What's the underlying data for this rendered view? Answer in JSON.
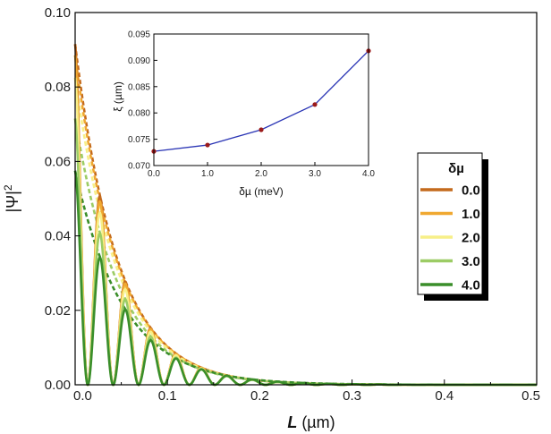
{
  "chart_data": [
    {
      "type": "line",
      "role": "main",
      "xlabel_symbol": "L",
      "xlabel_unit": " (µm)",
      "ylabel": "|Ψ|",
      "ylabel_exponent": "2",
      "xlim": [
        0.0,
        0.5
      ],
      "ylim": [
        0.0,
        0.1
      ],
      "x_ticks": [
        "0.0",
        "0.1",
        "0.2",
        "0.3",
        "0.4",
        "0.5"
      ],
      "y_ticks": [
        "0.00",
        "0.02",
        "0.04",
        "0.06",
        "0.08",
        "0.10"
      ],
      "legend": {
        "title": "δµ",
        "location": "center-right"
      },
      "oscillation_period": 0.0275,
      "series": [
        {
          "name": "0.0",
          "color": "#c46a1c",
          "envelope_peak": 0.0915,
          "decay_length": 0.0915
        },
        {
          "name": "1.0",
          "color": "#f0a830",
          "envelope_peak": 0.0885,
          "decay_length": 0.0925
        },
        {
          "name": "2.0",
          "color": "#f7ef88",
          "envelope_peak": 0.0825,
          "decay_length": 0.0935
        },
        {
          "name": "3.0",
          "color": "#9ccc65",
          "envelope_peak": 0.0715,
          "decay_length": 0.096
        },
        {
          "name": "4.0",
          "color": "#3a8e2a",
          "envelope_peak": 0.0575,
          "decay_length": 0.1045
        }
      ]
    },
    {
      "type": "line",
      "role": "inset",
      "xlabel": "δµ (meV)",
      "ylabel": "ξ (µm)",
      "xlim": [
        0.0,
        4.0
      ],
      "ylim": [
        0.07,
        0.095
      ],
      "x_ticks": [
        "0.0",
        "1.0",
        "2.0",
        "3.0",
        "4.0"
      ],
      "y_ticks": [
        "0.070",
        "0.075",
        "0.080",
        "0.085",
        "0.090",
        "0.095"
      ],
      "x": [
        0.0,
        1.0,
        2.0,
        3.0,
        4.0
      ],
      "y": [
        0.0727,
        0.0739,
        0.0768,
        0.0816,
        0.0918
      ],
      "line_color": "#2a35b5",
      "marker_color": "#9b1b1b"
    }
  ]
}
